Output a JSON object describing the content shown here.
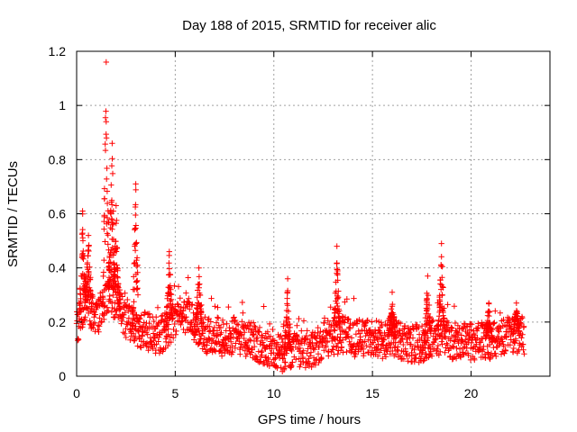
{
  "chart_data": {
    "type": "scatter",
    "title": "Day 188 of 2015, SRMTID for receiver alic",
    "xlabel": "GPS time / hours",
    "ylabel": "SRMTID / TECUs",
    "xlim": [
      0,
      24
    ],
    "ylim": [
      0,
      1.2
    ],
    "xticks": [
      0,
      5,
      10,
      15,
      20
    ],
    "yticks": [
      0,
      0.2,
      0.4,
      0.6,
      0.8,
      1,
      1.2
    ],
    "xtick_labels": [
      "0",
      "5",
      "10",
      "15",
      "20"
    ],
    "ytick_labels": [
      "0",
      "0.2",
      "0.4",
      "0.6",
      "0.8",
      "1",
      "1.2"
    ],
    "grid": true,
    "marker": "+",
    "series": [
      {
        "name": "SRMTID",
        "color": "#ff0000",
        "envelope": {
          "note": "Approximate data range read from the plot: baseline level and spikes (hours, TECU)",
          "baseline": [
            [
              0.0,
              0.18
            ],
            [
              0.5,
              0.28
            ],
            [
              1.0,
              0.2
            ],
            [
              1.5,
              0.3
            ],
            [
              2.0,
              0.28
            ],
            [
              2.5,
              0.2
            ],
            [
              3.0,
              0.18
            ],
            [
              3.5,
              0.17
            ],
            [
              4.0,
              0.15
            ],
            [
              4.5,
              0.16
            ],
            [
              5.0,
              0.22
            ],
            [
              5.5,
              0.23
            ],
            [
              6.0,
              0.2
            ],
            [
              6.5,
              0.15
            ],
            [
              7.0,
              0.15
            ],
            [
              7.5,
              0.14
            ],
            [
              8.0,
              0.15
            ],
            [
              8.5,
              0.13
            ],
            [
              9.0,
              0.13
            ],
            [
              9.5,
              0.11
            ],
            [
              10.0,
              0.1
            ],
            [
              10.5,
              0.08
            ],
            [
              11.0,
              0.09
            ],
            [
              11.5,
              0.1
            ],
            [
              12.0,
              0.1
            ],
            [
              12.5,
              0.13
            ],
            [
              13.0,
              0.15
            ],
            [
              13.5,
              0.15
            ],
            [
              14.0,
              0.14
            ],
            [
              14.5,
              0.14
            ],
            [
              15.0,
              0.15
            ],
            [
              15.5,
              0.13
            ],
            [
              16.0,
              0.15
            ],
            [
              16.5,
              0.12
            ],
            [
              17.0,
              0.12
            ],
            [
              17.5,
              0.12
            ],
            [
              18.0,
              0.14
            ],
            [
              18.5,
              0.15
            ],
            [
              19.0,
              0.13
            ],
            [
              19.5,
              0.13
            ],
            [
              20.0,
              0.13
            ],
            [
              20.5,
              0.13
            ],
            [
              21.0,
              0.13
            ],
            [
              21.5,
              0.14
            ],
            [
              22.0,
              0.15
            ],
            [
              22.7,
              0.15
            ]
          ],
          "spikes": [
            [
              0.3,
              0.61
            ],
            [
              0.6,
              0.52
            ],
            [
              1.5,
              1.16
            ],
            [
              1.8,
              0.86
            ],
            [
              2.0,
              0.63
            ],
            [
              3.0,
              0.71
            ],
            [
              4.7,
              0.46
            ],
            [
              6.2,
              0.4
            ],
            [
              10.7,
              0.36
            ],
            [
              13.2,
              0.48
            ],
            [
              16.0,
              0.31
            ],
            [
              17.8,
              0.37
            ],
            [
              18.5,
              0.49
            ],
            [
              20.9,
              0.27
            ],
            [
              22.3,
              0.27
            ]
          ]
        }
      }
    ]
  }
}
